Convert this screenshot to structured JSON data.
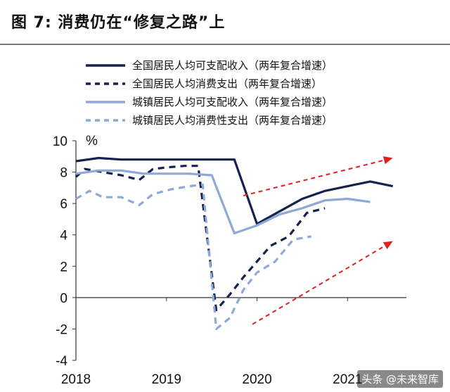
{
  "figure": {
    "title": "图 7:  消费仍在“修复之路”上",
    "watermark": "头条 @未来智库"
  },
  "colors": {
    "dark_navy": "#14224f",
    "light_blue": "#8fa8d8",
    "arrow_red": "#e02020",
    "axis": "#333333"
  },
  "chart_data": {
    "type": "line",
    "title": "",
    "xlabel": "",
    "ylabel": "%",
    "ylim": [
      -4,
      10
    ],
    "yticks": [
      10,
      8,
      6,
      4,
      2,
      0,
      -2,
      -4
    ],
    "xticks": [
      {
        "label": "2018",
        "x": 2018.0
      },
      {
        "label": "2019",
        "x": 2019.0
      },
      {
        "label": "2020",
        "x": 2020.0
      },
      {
        "label": "2021",
        "x": 2021.0
      }
    ],
    "xlim": [
      2018.0,
      2021.65
    ],
    "grid": false,
    "legend_position": "top",
    "series": [
      {
        "name": "全国居民人均可支配收入（两年复合增速）",
        "color": "#14224f",
        "dash": "solid",
        "points": [
          [
            2018.0,
            8.7
          ],
          [
            2018.25,
            8.9
          ],
          [
            2018.5,
            8.8
          ],
          [
            2018.75,
            8.8
          ],
          [
            2019.0,
            8.8
          ],
          [
            2019.25,
            8.8
          ],
          [
            2019.5,
            8.8
          ],
          [
            2019.75,
            8.8
          ],
          [
            2020.0,
            4.7
          ],
          [
            2020.25,
            5.5
          ],
          [
            2020.5,
            6.3
          ],
          [
            2020.75,
            6.8
          ],
          [
            2021.0,
            7.1
          ],
          [
            2021.25,
            7.4
          ],
          [
            2021.5,
            7.1
          ]
        ]
      },
      {
        "name": "全国居民人均消费支出（两年复合增速）",
        "color": "#14224f",
        "dash": "dashed",
        "points": [
          [
            2018.0,
            7.7
          ],
          [
            2018.1,
            8.2
          ],
          [
            2018.3,
            8.0
          ],
          [
            2018.5,
            7.8
          ],
          [
            2018.7,
            7.5
          ],
          [
            2018.85,
            8.2
          ],
          [
            2019.0,
            8.3
          ],
          [
            2019.2,
            8.4
          ],
          [
            2019.35,
            8.4
          ],
          [
            2019.55,
            -0.8
          ],
          [
            2019.7,
            0.2
          ],
          [
            2019.85,
            1.3
          ],
          [
            2020.0,
            2.3
          ],
          [
            2020.15,
            3.3
          ],
          [
            2020.35,
            3.9
          ],
          [
            2020.55,
            5.4
          ],
          [
            2020.75,
            5.7
          ]
        ]
      },
      {
        "name": "城镇居民人均可支配收入（两年复合增速）",
        "color": "#8fa8d8",
        "dash": "solid",
        "points": [
          [
            2018.0,
            7.9
          ],
          [
            2018.25,
            8.1
          ],
          [
            2018.5,
            8.1
          ],
          [
            2018.75,
            7.9
          ],
          [
            2019.0,
            7.9
          ],
          [
            2019.25,
            7.9
          ],
          [
            2019.5,
            7.8
          ],
          [
            2019.75,
            4.1
          ],
          [
            2020.0,
            4.6
          ],
          [
            2020.25,
            5.3
          ],
          [
            2020.5,
            5.7
          ],
          [
            2020.75,
            6.2
          ],
          [
            2021.0,
            6.3
          ],
          [
            2021.25,
            6.1
          ]
        ]
      },
      {
        "name": "城镇居民人均消费性支出（两年复合增速）",
        "color": "#8fa8d8",
        "dash": "dashed",
        "points": [
          [
            2018.0,
            6.3
          ],
          [
            2018.15,
            6.8
          ],
          [
            2018.3,
            6.4
          ],
          [
            2018.5,
            6.4
          ],
          [
            2018.7,
            5.9
          ],
          [
            2018.85,
            6.6
          ],
          [
            2019.05,
            6.9
          ],
          [
            2019.25,
            7.1
          ],
          [
            2019.4,
            7.2
          ],
          [
            2019.55,
            -2.0
          ],
          [
            2019.7,
            -1.3
          ],
          [
            2019.85,
            0.5
          ],
          [
            2020.0,
            1.6
          ],
          [
            2020.2,
            2.3
          ],
          [
            2020.4,
            3.7
          ],
          [
            2020.6,
            3.9
          ]
        ]
      }
    ],
    "annotations": [
      {
        "type": "arrow",
        "color": "#e02020",
        "dash": "dashed",
        "from": [
          2019.85,
          6.5
        ],
        "to": [
          2021.5,
          8.9
        ]
      },
      {
        "type": "arrow",
        "color": "#e02020",
        "dash": "dashed",
        "from": [
          2019.95,
          -1.7
        ],
        "to": [
          2021.5,
          3.6
        ]
      }
    ]
  }
}
